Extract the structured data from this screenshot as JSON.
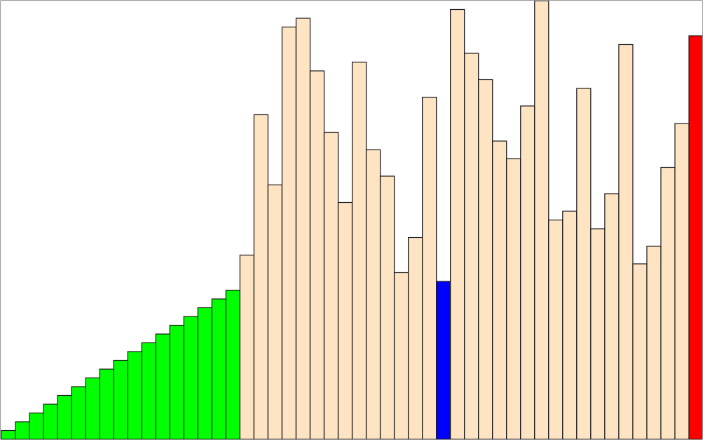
{
  "chart_data": {
    "type": "bar",
    "title": "",
    "xlabel": "",
    "ylabel": "",
    "ylim": [
      0,
      100
    ],
    "grid": false,
    "legend": "none",
    "values": [
      2,
      4,
      6,
      8,
      10,
      12,
      14,
      16,
      18,
      20,
      22,
      24,
      26,
      28,
      30,
      32,
      34,
      42,
      74,
      58,
      94,
      96,
      84,
      70,
      54,
      86,
      66,
      60,
      38,
      46,
      78,
      36,
      98,
      88,
      82,
      68,
      64,
      76,
      100,
      50,
      52,
      80,
      48,
      56,
      90,
      40,
      44,
      62,
      72,
      92
    ],
    "bar_states": [
      "sorted",
      "sorted",
      "sorted",
      "sorted",
      "sorted",
      "sorted",
      "sorted",
      "sorted",
      "sorted",
      "sorted",
      "sorted",
      "sorted",
      "sorted",
      "sorted",
      "sorted",
      "sorted",
      "sorted",
      "unsorted",
      "unsorted",
      "unsorted",
      "unsorted",
      "unsorted",
      "unsorted",
      "unsorted",
      "unsorted",
      "unsorted",
      "unsorted",
      "unsorted",
      "unsorted",
      "unsorted",
      "unsorted",
      "current",
      "unsorted",
      "unsorted",
      "unsorted",
      "unsorted",
      "unsorted",
      "unsorted",
      "unsorted",
      "unsorted",
      "unsorted",
      "unsorted",
      "unsorted",
      "unsorted",
      "unsorted",
      "unsorted",
      "unsorted",
      "unsorted",
      "unsorted",
      "compare"
    ],
    "colors": {
      "sorted": "#00ff00",
      "unsorted": "#ffe4c4",
      "current": "#0000ff",
      "compare": "#ff0000",
      "stroke": "#1a1a1a",
      "background": "#ffffff"
    }
  }
}
